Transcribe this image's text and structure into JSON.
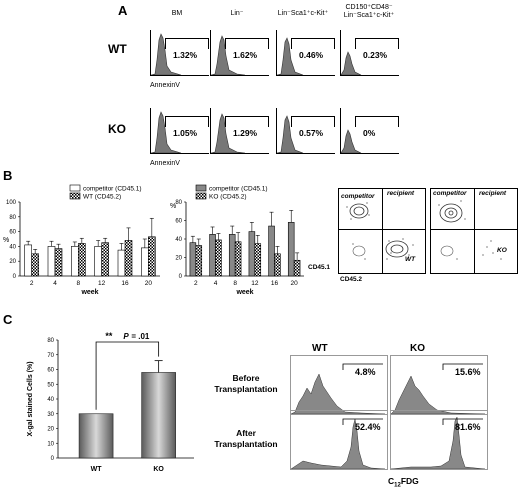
{
  "panelA": {
    "letter": "A",
    "columns": [
      "BM",
      "Lin⁻",
      "Lin⁻Sca1⁺c-Kit⁺",
      "CD150⁺CD48⁻",
      "Lin⁻Sca1⁺c-Kit⁺"
    ],
    "rows": [
      {
        "label": "WT",
        "values": [
          "1.32%",
          "1.62%",
          "0.46%",
          "0.23%"
        ]
      },
      {
        "label": "KO",
        "values": [
          "1.05%",
          "1.29%",
          "0.57%",
          "0%"
        ]
      }
    ],
    "xlabel": "AnnexinV"
  },
  "panelB": {
    "letter": "B",
    "chart_data": [
      {
        "type": "bar",
        "categories": [
          "2",
          "4",
          "8",
          "12",
          "16",
          "20"
        ],
        "series": [
          {
            "name": "competitor (CD45.1)",
            "values": [
              42,
              40,
              40,
              40,
              35,
              38
            ],
            "err": [
              5,
              7,
              6,
              8,
              9,
              12
            ]
          },
          {
            "name": "WT (CD45.2)",
            "values": [
              30,
              37,
              44,
              45,
              48,
              53
            ],
            "err": [
              6,
              6,
              7,
              6,
              17,
              25
            ]
          }
        ],
        "xlabel": "week",
        "ylabel": "%",
        "ylim": [
          0,
          100
        ],
        "yticks": [
          0,
          20,
          40,
          60,
          80,
          100
        ]
      },
      {
        "type": "bar",
        "categories": [
          "2",
          "4",
          "8",
          "12",
          "16",
          "20"
        ],
        "series": [
          {
            "name": "competitor (CD45.1)",
            "values": [
              36,
              45,
              45,
              48,
              54,
              58
            ],
            "err": [
              7,
              8,
              9,
              10,
              15,
              13
            ]
          },
          {
            "name": "KO (CD45.2)",
            "values": [
              33,
              39,
              37,
              35,
              24,
              17
            ],
            "err": [
              7,
              7,
              10,
              9,
              8,
              8
            ]
          }
        ],
        "xlabel": "week",
        "ylabel": "%",
        "ylim": [
          0,
          80
        ],
        "yticks": [
          0,
          20,
          40,
          60,
          80
        ]
      }
    ],
    "flow": {
      "competitor": "competitor",
      "recipient": "recipient",
      "wt": "WT",
      "ko": "KO",
      "ylabel": "CD45.1",
      "xlabel": "CD45.2"
    }
  },
  "panelC": {
    "letter": "C",
    "chart_data": {
      "type": "bar",
      "categories": [
        "WT",
        "KO"
      ],
      "values": [
        30,
        58
      ],
      "err": [
        0,
        8
      ],
      "ylabel": "X-gal stained Cells (%)",
      "ylim": [
        0,
        80
      ],
      "yticks": [
        0,
        10,
        20,
        30,
        40,
        50,
        60,
        70,
        80
      ]
    },
    "sig": "**",
    "pval_label": "P",
    "pval_value": "= .01",
    "cols": [
      "WT",
      "KO"
    ],
    "rows": [
      {
        "label1": "Before",
        "label2": "Transplantation",
        "values": [
          "4.8%",
          "15.6%"
        ]
      },
      {
        "label1": "After",
        "label2": "Transplantation",
        "values": [
          "52.4%",
          "81.6%"
        ]
      }
    ],
    "xlabel_main": "C",
    "xlabel_sub": "12",
    "xlabel_end": "FDG"
  }
}
